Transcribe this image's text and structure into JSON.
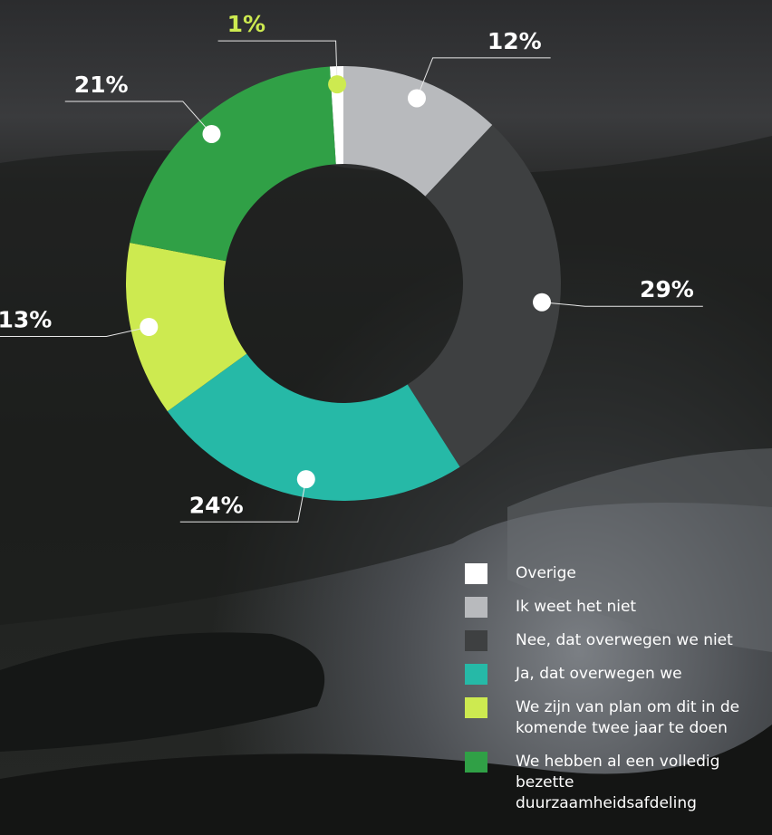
{
  "chart_data": {
    "type": "donut",
    "categories": [
      "Overige",
      "Ik weet het niet",
      "Nee, dat overwegen we niet",
      "Ja, dat overwegen we",
      "We zijn van plan om dit in de komende twee jaar te doen",
      "We hebben al een volledig bezette duurzaamheidsafdeling"
    ],
    "values": [
      1,
      12,
      29,
      24,
      13,
      21
    ],
    "value_labels": [
      "1%",
      "12%",
      "29%",
      "24%",
      "13%",
      "21%"
    ],
    "colors": [
      "#ffffff",
      "#b8babd",
      "#3e4041",
      "#26b9a7",
      "#cdea50",
      "#30a046"
    ]
  }
}
